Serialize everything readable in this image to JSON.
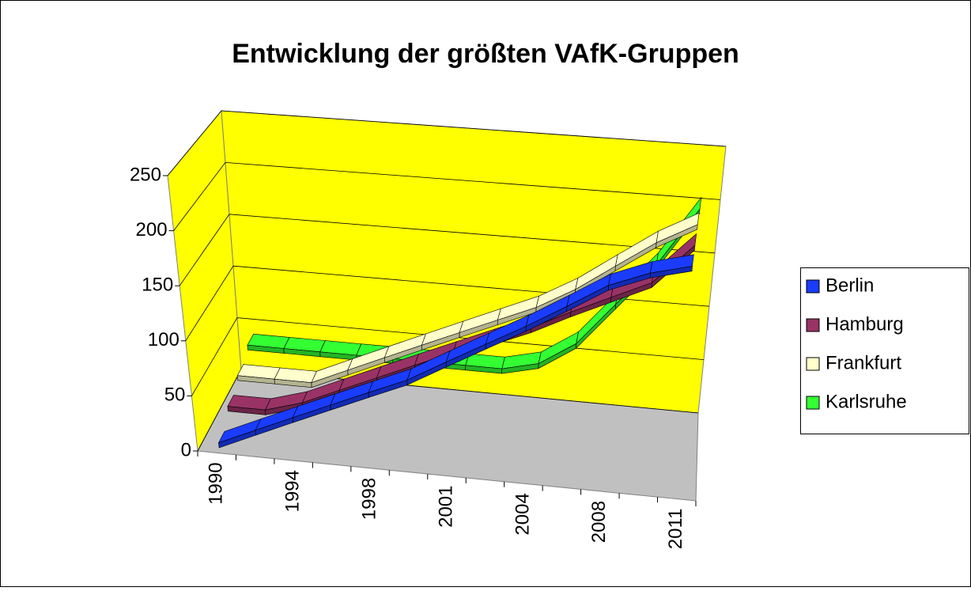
{
  "chart_data": {
    "type": "line3d",
    "title": "Entwicklung der größten VAfK-Gruppen",
    "categories": [
      "1990",
      null,
      "1994",
      null,
      "1998",
      null,
      "2001",
      null,
      "2004",
      null,
      "2008",
      null,
      "2011"
    ],
    "series": [
      {
        "name": "Berlin",
        "color": "#1a3cff",
        "values": [
          5,
          20,
          35,
          50,
          65,
          80,
          100,
          120,
          140,
          162,
          185,
          200,
          210
        ]
      },
      {
        "name": "Hamburg",
        "color": "#993366",
        "values": [
          20,
          20,
          30,
          45,
          60,
          75,
          90,
          105,
          120,
          138,
          155,
          172,
          210
        ]
      },
      {
        "name": "Frankfurt",
        "color": "#ffffcc",
        "values": [
          30,
          30,
          30,
          45,
          60,
          75,
          90,
          105,
          120,
          140,
          165,
          190,
          210
        ]
      },
      {
        "name": "Karlsruhe",
        "color": "#33ff33",
        "values": [
          40,
          40,
          40,
          40,
          40,
          40,
          40,
          40,
          48,
          70,
          110,
          150,
          205
        ]
      }
    ],
    "ylim": [
      0,
      250
    ],
    "yticks": [
      0,
      50,
      100,
      150,
      200,
      250
    ],
    "grid": true,
    "legend": "right"
  }
}
